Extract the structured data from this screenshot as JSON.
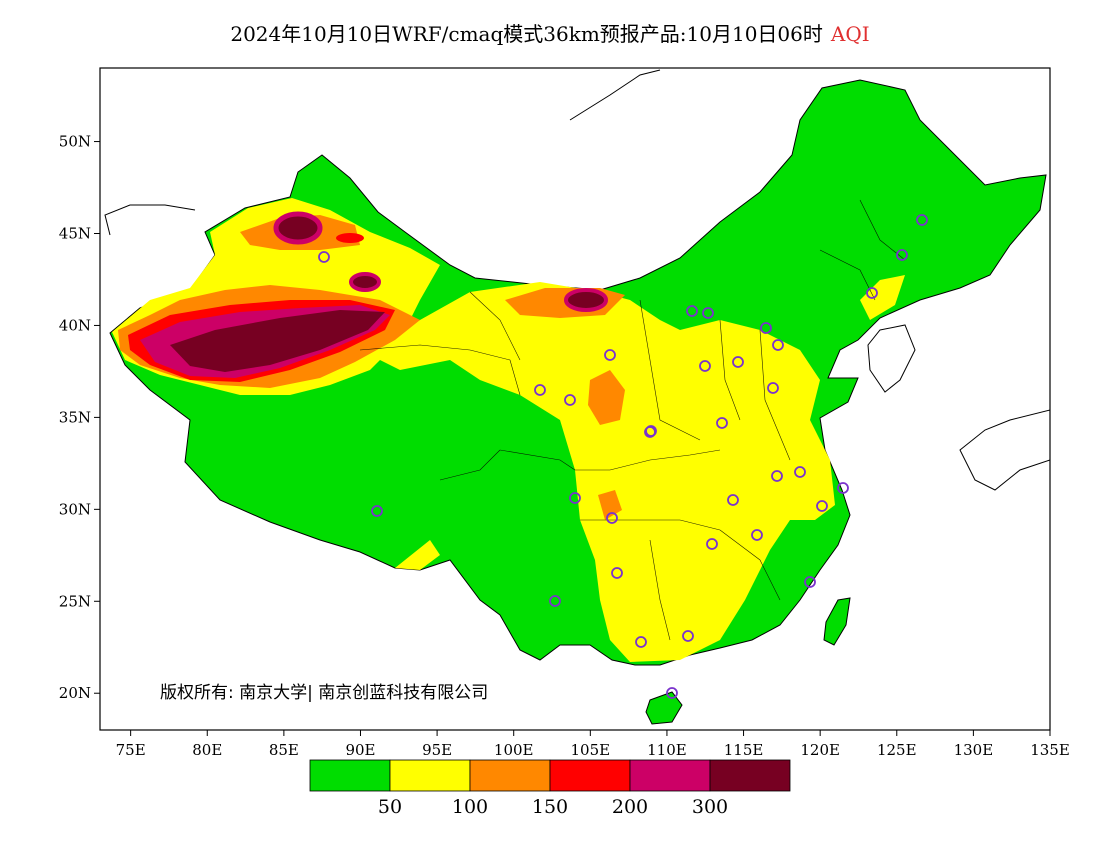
{
  "title": {
    "main": "2024年10月10日WRF/cmaq模式36km预报产品:10月10日06时",
    "variable": "AQI"
  },
  "map": {
    "lon_range": [
      73,
      135
    ],
    "lat_range": [
      18,
      54
    ],
    "x_ticks": [
      "75E",
      "80E",
      "85E",
      "90E",
      "95E",
      "100E",
      "105E",
      "110E",
      "115E",
      "120E",
      "125E",
      "130E",
      "135E"
    ],
    "y_ticks": [
      "50N",
      "45N",
      "40N",
      "35N",
      "30N",
      "25N",
      "20N"
    ],
    "copyright": "版权所有: 南京大学| 南京创蓝科技有限公司",
    "stations": 33
  },
  "legend": {
    "colors": [
      "#00dd00",
      "#ffff00",
      "#ff8800",
      "#ff0000",
      "#cc0066",
      "#770022"
    ],
    "labels": [
      "50",
      "100",
      "150",
      "200",
      "300"
    ]
  }
}
